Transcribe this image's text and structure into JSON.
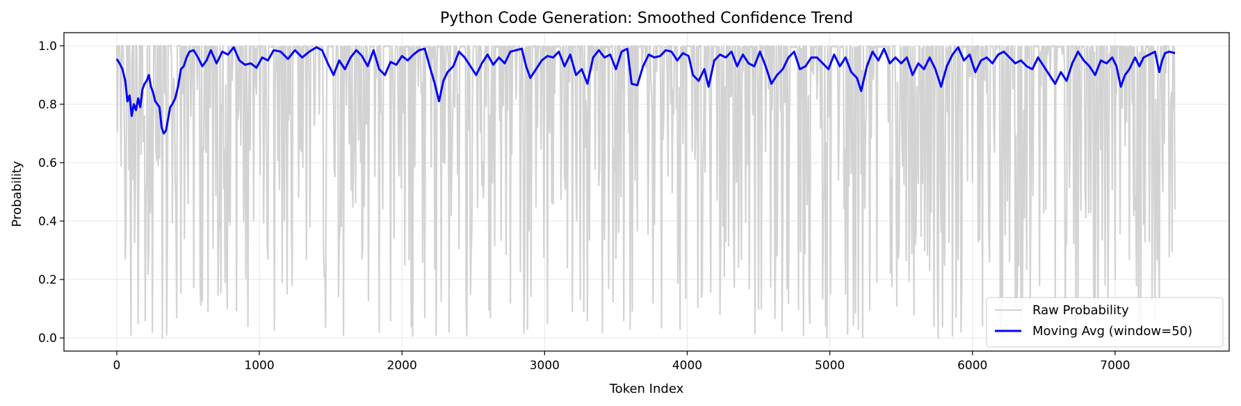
{
  "chart_data": {
    "type": "line",
    "title": "Python Code Generation: Smoothed Confidence Trend",
    "xlabel": "Token Index",
    "ylabel": "Probability",
    "xlim": [
      -370,
      7800
    ],
    "ylim": [
      -0.045,
      1.045
    ],
    "xticks": [
      0,
      1000,
      2000,
      3000,
      4000,
      5000,
      6000,
      7000
    ],
    "yticks": [
      0.0,
      0.2,
      0.4,
      0.6,
      0.8,
      1.0
    ],
    "xtick_labels": [
      "0",
      "1000",
      "2000",
      "3000",
      "4000",
      "5000",
      "6000",
      "7000"
    ],
    "ytick_labels": [
      "0.0",
      "0.2",
      "0.4",
      "0.6",
      "0.8",
      "1.0"
    ],
    "grid": true,
    "legend_position": "lower-right",
    "num_tokens": 7420,
    "series": [
      {
        "name": "Raw Probability",
        "color": "#d3d3d3",
        "note": "per-token probability; mostly near 1.0 with frequent dips toward 0",
        "sample_dips": [
          [
            30,
            0.59
          ],
          [
            60,
            0.27
          ],
          [
            100,
            0.01
          ],
          [
            150,
            0.05
          ],
          [
            200,
            0.06
          ],
          [
            250,
            0.02
          ],
          [
            320,
            0.0
          ],
          [
            350,
            0.01
          ],
          [
            420,
            0.07
          ],
          [
            500,
            0.46
          ],
          [
            640,
            0.09
          ],
          [
            760,
            0.19
          ],
          [
            920,
            0.04
          ],
          [
            1060,
            0.27
          ],
          [
            1160,
            0.19
          ],
          [
            1330,
            0.27
          ],
          [
            1460,
            0.22
          ],
          [
            1590,
            0.01
          ],
          [
            1720,
            0.27
          ],
          [
            1840,
            0.02
          ],
          [
            1920,
            0.06
          ],
          [
            2020,
            0.25
          ],
          [
            2160,
            0.07
          ],
          [
            2240,
            0.01
          ],
          [
            2330,
            0.02
          ],
          [
            2480,
            0.15
          ],
          [
            2620,
            0.07
          ],
          [
            2760,
            0.12
          ],
          [
            2880,
            0.03
          ],
          [
            3020,
            0.05
          ],
          [
            3160,
            0.24
          ],
          [
            3300,
            0.06
          ],
          [
            3450,
            0.17
          ],
          [
            3600,
            0.03
          ],
          [
            3760,
            0.12
          ],
          [
            3950,
            0.03
          ],
          [
            4100,
            0.14
          ],
          [
            4230,
            0.08
          ],
          [
            4380,
            0.27
          ],
          [
            4520,
            0.1
          ],
          [
            4700,
            0.17
          ],
          [
            4860,
            0.05
          ],
          [
            4980,
            0.0
          ],
          [
            5110,
            0.15
          ],
          [
            5200,
            0.03
          ],
          [
            5330,
            0.19
          ],
          [
            5470,
            0.11
          ],
          [
            5600,
            0.32
          ],
          [
            5760,
            0.0
          ],
          [
            5920,
            0.02
          ],
          [
            6040,
            0.33
          ],
          [
            6200,
            0.04
          ],
          [
            6350,
            0.09
          ],
          [
            6470,
            0.18
          ],
          [
            6580,
            0.12
          ],
          [
            6740,
            0.07
          ],
          [
            6880,
            0.05
          ],
          [
            7000,
            0.2
          ],
          [
            7150,
            0.18
          ],
          [
            7280,
            0.06
          ],
          [
            7420,
            0.44
          ]
        ]
      },
      {
        "name": "Moving Avg (window=50)",
        "color": "#0000ff",
        "points": [
          [
            0,
            0.955
          ],
          [
            20,
            0.94
          ],
          [
            40,
            0.92
          ],
          [
            60,
            0.88
          ],
          [
            75,
            0.81
          ],
          [
            90,
            0.83
          ],
          [
            105,
            0.76
          ],
          [
            120,
            0.8
          ],
          [
            135,
            0.78
          ],
          [
            150,
            0.82
          ],
          [
            165,
            0.79
          ],
          [
            180,
            0.85
          ],
          [
            195,
            0.87
          ],
          [
            210,
            0.88
          ],
          [
            225,
            0.9
          ],
          [
            240,
            0.86
          ],
          [
            255,
            0.84
          ],
          [
            270,
            0.81
          ],
          [
            285,
            0.8
          ],
          [
            300,
            0.79
          ],
          [
            315,
            0.72
          ],
          [
            330,
            0.7
          ],
          [
            345,
            0.71
          ],
          [
            360,
            0.75
          ],
          [
            375,
            0.79
          ],
          [
            390,
            0.8
          ],
          [
            410,
            0.82
          ],
          [
            430,
            0.86
          ],
          [
            450,
            0.92
          ],
          [
            470,
            0.93
          ],
          [
            490,
            0.96
          ],
          [
            510,
            0.98
          ],
          [
            540,
            0.985
          ],
          [
            570,
            0.96
          ],
          [
            600,
            0.93
          ],
          [
            630,
            0.95
          ],
          [
            660,
            0.985
          ],
          [
            700,
            0.94
          ],
          [
            740,
            0.98
          ],
          [
            780,
            0.97
          ],
          [
            820,
            0.995
          ],
          [
            860,
            0.95
          ],
          [
            900,
            0.935
          ],
          [
            940,
            0.94
          ],
          [
            980,
            0.925
          ],
          [
            1020,
            0.96
          ],
          [
            1060,
            0.95
          ],
          [
            1100,
            0.985
          ],
          [
            1150,
            0.98
          ],
          [
            1200,
            0.955
          ],
          [
            1250,
            0.985
          ],
          [
            1300,
            0.96
          ],
          [
            1350,
            0.98
          ],
          [
            1400,
            0.995
          ],
          [
            1440,
            0.985
          ],
          [
            1480,
            0.94
          ],
          [
            1520,
            0.9
          ],
          [
            1560,
            0.95
          ],
          [
            1600,
            0.92
          ],
          [
            1640,
            0.96
          ],
          [
            1680,
            0.985
          ],
          [
            1720,
            0.965
          ],
          [
            1760,
            0.93
          ],
          [
            1800,
            0.985
          ],
          [
            1840,
            0.92
          ],
          [
            1880,
            0.9
          ],
          [
            1920,
            0.945
          ],
          [
            1960,
            0.935
          ],
          [
            2000,
            0.965
          ],
          [
            2040,
            0.95
          ],
          [
            2080,
            0.97
          ],
          [
            2120,
            0.985
          ],
          [
            2160,
            0.99
          ],
          [
            2200,
            0.92
          ],
          [
            2230,
            0.87
          ],
          [
            2260,
            0.81
          ],
          [
            2290,
            0.88
          ],
          [
            2320,
            0.91
          ],
          [
            2360,
            0.93
          ],
          [
            2400,
            0.98
          ],
          [
            2440,
            0.96
          ],
          [
            2480,
            0.93
          ],
          [
            2520,
            0.9
          ],
          [
            2560,
            0.94
          ],
          [
            2600,
            0.97
          ],
          [
            2640,
            0.935
          ],
          [
            2680,
            0.96
          ],
          [
            2720,
            0.94
          ],
          [
            2760,
            0.98
          ],
          [
            2800,
            0.985
          ],
          [
            2840,
            0.99
          ],
          [
            2870,
            0.93
          ],
          [
            2900,
            0.89
          ],
          [
            2940,
            0.92
          ],
          [
            2980,
            0.95
          ],
          [
            3020,
            0.965
          ],
          [
            3060,
            0.96
          ],
          [
            3100,
            0.98
          ],
          [
            3140,
            0.93
          ],
          [
            3180,
            0.97
          ],
          [
            3220,
            0.9
          ],
          [
            3260,
            0.92
          ],
          [
            3300,
            0.87
          ],
          [
            3340,
            0.96
          ],
          [
            3380,
            0.985
          ],
          [
            3420,
            0.96
          ],
          [
            3460,
            0.97
          ],
          [
            3500,
            0.92
          ],
          [
            3540,
            0.98
          ],
          [
            3580,
            0.99
          ],
          [
            3610,
            0.87
          ],
          [
            3650,
            0.865
          ],
          [
            3690,
            0.93
          ],
          [
            3730,
            0.97
          ],
          [
            3770,
            0.96
          ],
          [
            3810,
            0.965
          ],
          [
            3850,
            0.985
          ],
          [
            3890,
            0.98
          ],
          [
            3930,
            0.95
          ],
          [
            3970,
            0.975
          ],
          [
            4010,
            0.965
          ],
          [
            4040,
            0.9
          ],
          [
            4080,
            0.88
          ],
          [
            4120,
            0.92
          ],
          [
            4150,
            0.86
          ],
          [
            4190,
            0.95
          ],
          [
            4230,
            0.97
          ],
          [
            4270,
            0.96
          ],
          [
            4310,
            0.98
          ],
          [
            4350,
            0.93
          ],
          [
            4390,
            0.97
          ],
          [
            4430,
            0.94
          ],
          [
            4470,
            0.93
          ],
          [
            4510,
            0.98
          ],
          [
            4550,
            0.93
          ],
          [
            4590,
            0.87
          ],
          [
            4630,
            0.9
          ],
          [
            4670,
            0.92
          ],
          [
            4710,
            0.96
          ],
          [
            4750,
            0.98
          ],
          [
            4790,
            0.92
          ],
          [
            4830,
            0.93
          ],
          [
            4870,
            0.96
          ],
          [
            4910,
            0.96
          ],
          [
            4950,
            0.94
          ],
          [
            4990,
            0.92
          ],
          [
            5030,
            0.97
          ],
          [
            5070,
            0.93
          ],
          [
            5110,
            0.96
          ],
          [
            5150,
            0.91
          ],
          [
            5190,
            0.89
          ],
          [
            5220,
            0.845
          ],
          [
            5260,
            0.93
          ],
          [
            5300,
            0.98
          ],
          [
            5340,
            0.95
          ],
          [
            5380,
            0.99
          ],
          [
            5420,
            0.94
          ],
          [
            5460,
            0.96
          ],
          [
            5500,
            0.94
          ],
          [
            5540,
            0.96
          ],
          [
            5580,
            0.9
          ],
          [
            5620,
            0.94
          ],
          [
            5660,
            0.92
          ],
          [
            5700,
            0.96
          ],
          [
            5740,
            0.92
          ],
          [
            5780,
            0.86
          ],
          [
            5820,
            0.93
          ],
          [
            5860,
            0.97
          ],
          [
            5900,
            0.995
          ],
          [
            5940,
            0.95
          ],
          [
            5980,
            0.97
          ],
          [
            6020,
            0.91
          ],
          [
            6060,
            0.95
          ],
          [
            6100,
            0.96
          ],
          [
            6140,
            0.94
          ],
          [
            6180,
            0.97
          ],
          [
            6220,
            0.98
          ],
          [
            6260,
            0.96
          ],
          [
            6300,
            0.94
          ],
          [
            6340,
            0.95
          ],
          [
            6380,
            0.93
          ],
          [
            6420,
            0.92
          ],
          [
            6460,
            0.96
          ],
          [
            6500,
            0.93
          ],
          [
            6540,
            0.9
          ],
          [
            6580,
            0.87
          ],
          [
            6620,
            0.91
          ],
          [
            6660,
            0.88
          ],
          [
            6700,
            0.94
          ],
          [
            6740,
            0.98
          ],
          [
            6780,
            0.95
          ],
          [
            6820,
            0.93
          ],
          [
            6860,
            0.9
          ],
          [
            6900,
            0.95
          ],
          [
            6940,
            0.94
          ],
          [
            6980,
            0.96
          ],
          [
            7010,
            0.93
          ],
          [
            7040,
            0.86
          ],
          [
            7070,
            0.9
          ],
          [
            7100,
            0.92
          ],
          [
            7140,
            0.96
          ],
          [
            7170,
            0.93
          ],
          [
            7200,
            0.96
          ],
          [
            7240,
            0.97
          ],
          [
            7280,
            0.98
          ],
          [
            7310,
            0.91
          ],
          [
            7330,
            0.95
          ],
          [
            7350,
            0.975
          ],
          [
            7380,
            0.98
          ],
          [
            7420,
            0.975
          ]
        ]
      }
    ]
  }
}
